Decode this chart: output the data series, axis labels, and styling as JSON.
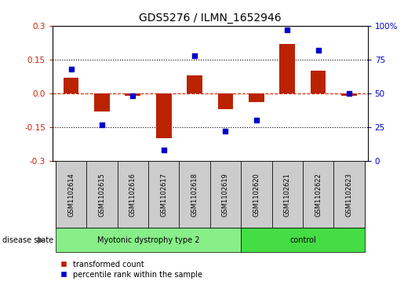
{
  "title": "GDS5276 / ILMN_1652946",
  "samples": [
    "GSM1102614",
    "GSM1102615",
    "GSM1102616",
    "GSM1102617",
    "GSM1102618",
    "GSM1102619",
    "GSM1102620",
    "GSM1102621",
    "GSM1102622",
    "GSM1102623"
  ],
  "bar_values": [
    0.07,
    -0.08,
    -0.01,
    -0.2,
    0.08,
    -0.07,
    -0.04,
    0.22,
    0.1,
    -0.01
  ],
  "scatter_values": [
    68,
    27,
    48,
    8,
    78,
    22,
    30,
    97,
    82,
    50
  ],
  "ylim_left": [
    -0.3,
    0.3
  ],
  "ylim_right": [
    0,
    100
  ],
  "yticks_left": [
    -0.3,
    -0.15,
    0.0,
    0.15,
    0.3
  ],
  "yticks_right": [
    0,
    25,
    50,
    75,
    100
  ],
  "ytick_labels_right": [
    "0",
    "25",
    "50",
    "75",
    "100%"
  ],
  "bar_color": "#bb2200",
  "scatter_color": "#0000cc",
  "group1_label": "Myotonic dystrophy type 2",
  "group2_label": "control",
  "group1_indices": [
    0,
    1,
    2,
    3,
    4,
    5
  ],
  "group2_indices": [
    6,
    7,
    8,
    9
  ],
  "group1_color": "#88ee88",
  "group2_color": "#44dd44",
  "label_box_color": "#cccccc",
  "disease_state_label": "disease state",
  "legend_bar_label": "transformed count",
  "legend_scatter_label": "percentile rank within the sample",
  "ylabel_left_color": "#cc2200",
  "ylabel_right_color": "#0000cc",
  "hline0_color": "#cc2200",
  "hline_dot_color": "#000000"
}
